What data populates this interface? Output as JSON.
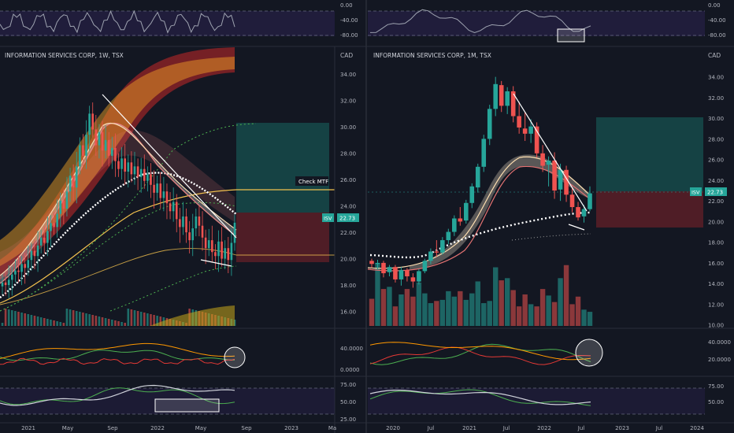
{
  "colors": {
    "background": "#131722",
    "separator": "#2a2e39",
    "axis_text": "#b2b5be",
    "up": "#26a69a",
    "down": "#ef5350",
    "price_badge": "#26a69a",
    "trendline": "#ffffff",
    "ma_yellow": "#f2c14e",
    "ma_dots": "#ffffff",
    "zone_profit": "#164a4a",
    "zone_loss": "#5b1f27",
    "cloud_hot": "#c62828",
    "cloud_warm": "#f9a825",
    "rsi_band": "#2b2350",
    "green_line": "#4caf50",
    "red_line": "#e53935",
    "orange_line": "#ff9800"
  },
  "left": {
    "title": "INFORMATION SERVICES CORP, 1W, TSX",
    "currency": "CAD",
    "price_badge_symbol": "ISV",
    "price_badge_value": "22.73",
    "annotation": "Check MTF",
    "x_labels": [
      "2021",
      "May",
      "Sep",
      "2022",
      "May",
      "Sep",
      "2023",
      "Ma"
    ],
    "top_rsi_ticks": [
      "0.00",
      "-40.00",
      "-80.00"
    ],
    "osc_ticks": [
      "40.0000",
      "0.0000"
    ],
    "rsi_ticks": [
      "75.00",
      "50.00",
      "25.00"
    ],
    "chart_data": {
      "type": "candlestick",
      "timeframe": "1W",
      "y_ticks": [
        "34.00",
        "32.00",
        "30.00",
        "28.00",
        "26.00",
        "24.00",
        "22.00",
        "20.00",
        "18.00",
        "16.00"
      ],
      "ylim": [
        14.9,
        35.2
      ],
      "last_price": 22.73,
      "closes": [
        18.2,
        18.0,
        18.4,
        18.8,
        19.1,
        19.0,
        19.6,
        19.3,
        19.9,
        20.6,
        20.2,
        21.0,
        21.6,
        21.2,
        22.1,
        22.7,
        22.4,
        23.4,
        24.4,
        23.8,
        25.1,
        26.3,
        25.4,
        27.0,
        28.6,
        27.8,
        29.4,
        31.0,
        29.8,
        28.6,
        29.6,
        28.2,
        29.0,
        27.8,
        28.4,
        27.4,
        26.8,
        27.6,
        26.6,
        27.3,
        26.4,
        27.0,
        26.2,
        26.8,
        25.9,
        26.4,
        25.6,
        25.0,
        25.7,
        24.6,
        25.1,
        24.2,
        23.6,
        24.3,
        23.0,
        22.4,
        23.2,
        22.0,
        21.4,
        22.3,
        23.2,
        22.5,
        21.6,
        20.8,
        21.4,
        20.5,
        20.2,
        21.3,
        20.0,
        20.8,
        19.9,
        21.2,
        22.73
      ]
    }
  },
  "right": {
    "title": "INFORMATION SERVICES CORP, 1M, TSX",
    "currency": "CAD",
    "price_badge_symbol": "ISV",
    "price_badge_value": "22.73",
    "x_labels": [
      "2020",
      "Jul",
      "2021",
      "Jul",
      "2022",
      "Jul",
      "2023",
      "Jul",
      "2024"
    ],
    "top_rsi_ticks": [
      "0.00",
      "-40.00",
      "-80.00"
    ],
    "osc_ticks": [
      "40.0000",
      "20.0000"
    ],
    "rsi_ticks": [
      "75.00",
      "50.00"
    ],
    "chart_data": {
      "type": "candlestick",
      "timeframe": "1M",
      "y_ticks": [
        "34.00",
        "32.00",
        "30.00",
        "28.00",
        "26.00",
        "24.00",
        "22.00",
        "20.00",
        "18.00",
        "16.00",
        "14.00",
        "12.00",
        "10.00"
      ],
      "ylim": [
        9.9,
        35.8
      ],
      "last_price": 22.73,
      "candles": [
        [
          16.2,
          16.4,
          15.5,
          15.9
        ],
        [
          15.9,
          16.3,
          15.4,
          16.0
        ],
        [
          16.0,
          16.2,
          14.6,
          15.0
        ],
        [
          15.1,
          15.8,
          14.7,
          15.6
        ],
        [
          15.6,
          15.8,
          14.1,
          14.4
        ],
        [
          14.4,
          15.6,
          13.8,
          15.3
        ],
        [
          15.3,
          15.5,
          14.2,
          14.7
        ],
        [
          14.6,
          15.0,
          13.6,
          14.2
        ],
        [
          14.2,
          15.4,
          13.9,
          15.2
        ],
        [
          15.2,
          16.4,
          15.0,
          16.2
        ],
        [
          16.2,
          17.4,
          15.9,
          17.1
        ],
        [
          17.1,
          18.2,
          16.6,
          17.0
        ],
        [
          17.0,
          18.5,
          16.8,
          18.2
        ],
        [
          18.2,
          19.3,
          17.8,
          19.0
        ],
        [
          19.0,
          20.6,
          18.6,
          20.3
        ],
        [
          20.3,
          21.4,
          19.6,
          20.0
        ],
        [
          20.1,
          22.1,
          19.8,
          21.8
        ],
        [
          21.8,
          23.7,
          21.3,
          23.4
        ],
        [
          23.3,
          25.6,
          22.8,
          25.3
        ],
        [
          25.3,
          28.4,
          24.8,
          28.0
        ],
        [
          28.0,
          31.3,
          27.4,
          30.9
        ],
        [
          30.9,
          34.0,
          30.2,
          33.3
        ],
        [
          33.2,
          33.6,
          30.6,
          31.2
        ],
        [
          31.2,
          33.0,
          30.4,
          32.6
        ],
        [
          32.6,
          33.1,
          29.6,
          30.2
        ],
        [
          30.2,
          31.6,
          28.5,
          29.1
        ],
        [
          29.0,
          30.6,
          27.8,
          28.5
        ],
        [
          28.5,
          29.9,
          27.6,
          29.2
        ],
        [
          29.2,
          29.6,
          26.2,
          26.6
        ],
        [
          26.6,
          27.4,
          24.8,
          25.4
        ],
        [
          25.5,
          26.3,
          23.4,
          25.9
        ],
        [
          25.9,
          26.7,
          22.2,
          23.0
        ],
        [
          23.1,
          25.6,
          22.0,
          25.0
        ],
        [
          25.0,
          25.4,
          21.9,
          22.6
        ],
        [
          22.6,
          23.4,
          20.9,
          21.4
        ],
        [
          21.4,
          21.9,
          20.1,
          20.4
        ],
        [
          20.5,
          21.6,
          19.9,
          21.2
        ],
        [
          21.2,
          23.4,
          21.0,
          22.73
        ]
      ],
      "volumes": [
        2.5,
        5.8,
        3.4,
        3.6,
        1.8,
        2.9,
        3.4,
        2.7,
        4.0,
        3.0,
        2.1,
        2.3,
        2.4,
        3.2,
        2.7,
        3.2,
        2.4,
        3.0,
        4.1,
        2.1,
        2.3,
        5.4,
        4.2,
        4.4,
        3.3,
        1.8,
        2.9,
        2.0,
        1.8,
        3.4,
        2.8,
        2.2,
        4.4,
        5.6,
        2.0,
        2.7,
        1.5,
        1.3
      ],
      "volume_unit": "M"
    }
  }
}
